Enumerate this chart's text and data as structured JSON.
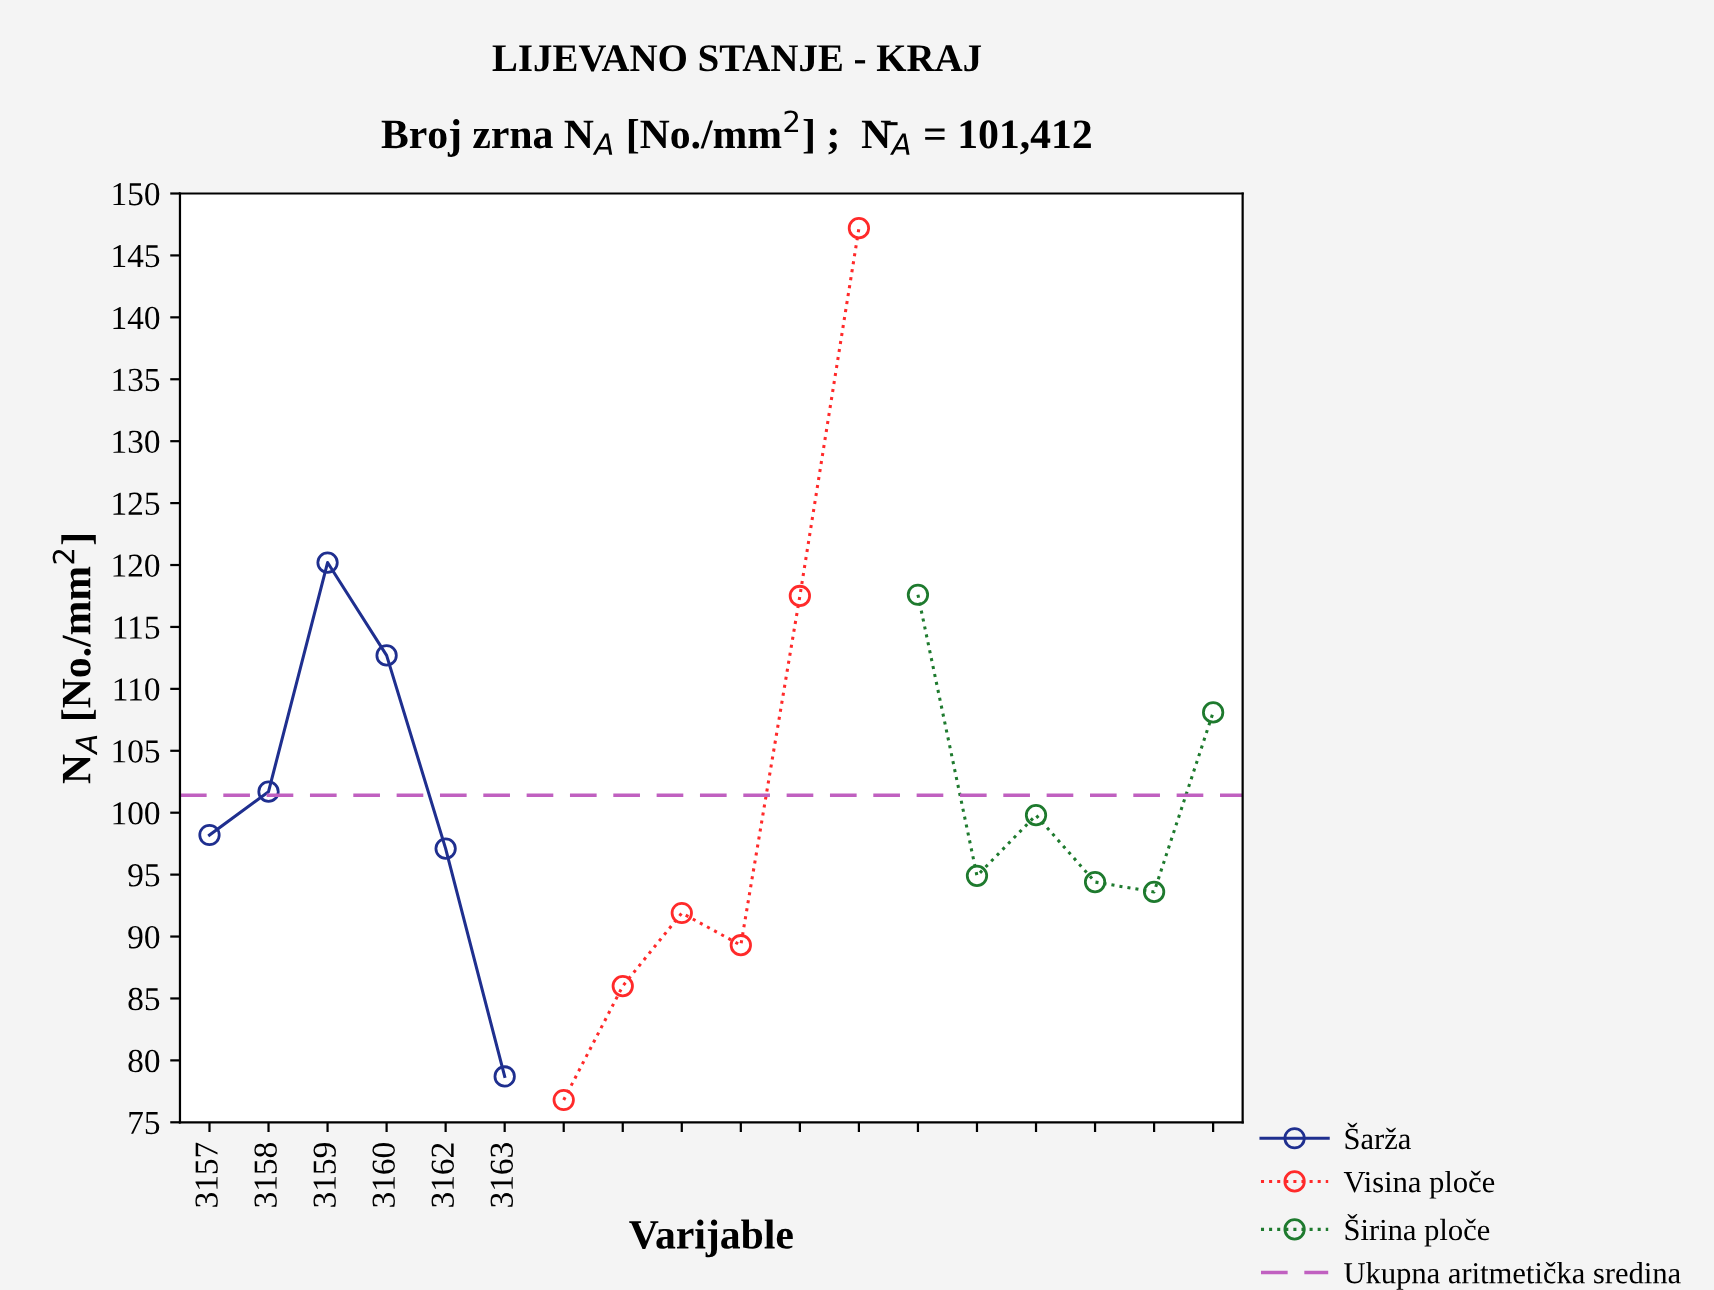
{
  "chart_data": {
    "type": "line",
    "title": "LIJEVANO STANJE - KRAJ",
    "subtitle": "Broj zrna N$_{A}$ [No./mm$^{2}$] ;  N̄$_{A}$ = 101,412",
    "xlabel": "Varijable",
    "ylabel": "N$_{A}$ [No./mm$^{2}$]",
    "categories": [
      "3157",
      "3158",
      "3159",
      "3160",
      "3162",
      "3163",
      null,
      null,
      null,
      null,
      null,
      null,
      null,
      null,
      null,
      null,
      null,
      null
    ],
    "series": [
      {
        "name": "Šarža",
        "color": "#1f2f8f",
        "line_style": "solid",
        "values": [
          98.2,
          101.7,
          120.2,
          112.7,
          97.1,
          78.7,
          null,
          null,
          null,
          null,
          null,
          null,
          null,
          null,
          null,
          null,
          null,
          null
        ]
      },
      {
        "name": "Visina ploče",
        "color": "#ff2a2a",
        "line_style": "dotted",
        "values": [
          null,
          null,
          null,
          null,
          null,
          null,
          76.8,
          86.0,
          91.9,
          89.3,
          117.5,
          147.2,
          null,
          null,
          null,
          null,
          null,
          null
        ]
      },
      {
        "name": "Širina ploče",
        "color": "#1e7a2e",
        "line_style": "dotted",
        "values": [
          null,
          null,
          null,
          null,
          null,
          null,
          null,
          null,
          null,
          null,
          null,
          null,
          117.6,
          94.9,
          99.8,
          94.4,
          93.6,
          108.1
        ]
      }
    ],
    "ref_lines": [
      {
        "axis": "y",
        "value": 101.412,
        "label": "Ukupna aritmetička sredina",
        "color": "#c060c0",
        "line_style": "dashed"
      }
    ],
    "ylim": [
      75,
      150
    ],
    "yticks": [
      75,
      80,
      85,
      90,
      95,
      100,
      105,
      110,
      115,
      120,
      125,
      130,
      135,
      140,
      145,
      150
    ],
    "marker": "circle",
    "grid": false,
    "legend": "bottom right"
  }
}
